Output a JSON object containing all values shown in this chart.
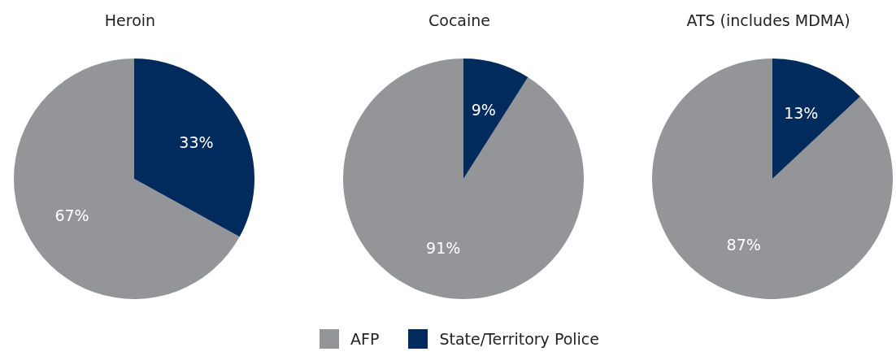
{
  "chart_data": [
    {
      "type": "pie",
      "title": "Heroin",
      "categories": [
        null,
        null
      ],
      "values": [
        67,
        33
      ],
      "colors": [
        "#939598",
        "#002b5c"
      ],
      "value_labels": [
        "67%",
        "33%"
      ]
    },
    {
      "type": "pie",
      "title": "Cocaine",
      "categories": [
        "AFP",
        "State/Territory Police"
      ],
      "values": [
        91,
        9
      ],
      "colors": [
        "#939598",
        "#002b5c"
      ],
      "value_labels": [
        "91%",
        "9%"
      ],
      "legend": "bottom"
    },
    {
      "type": "pie",
      "title": "ATS (includes MDMA)",
      "categories": [
        null,
        null
      ],
      "values": [
        87,
        13
      ],
      "colors": [
        "#939598",
        "#002b5c"
      ],
      "value_labels": [
        "87%",
        "13%"
      ]
    }
  ]
}
